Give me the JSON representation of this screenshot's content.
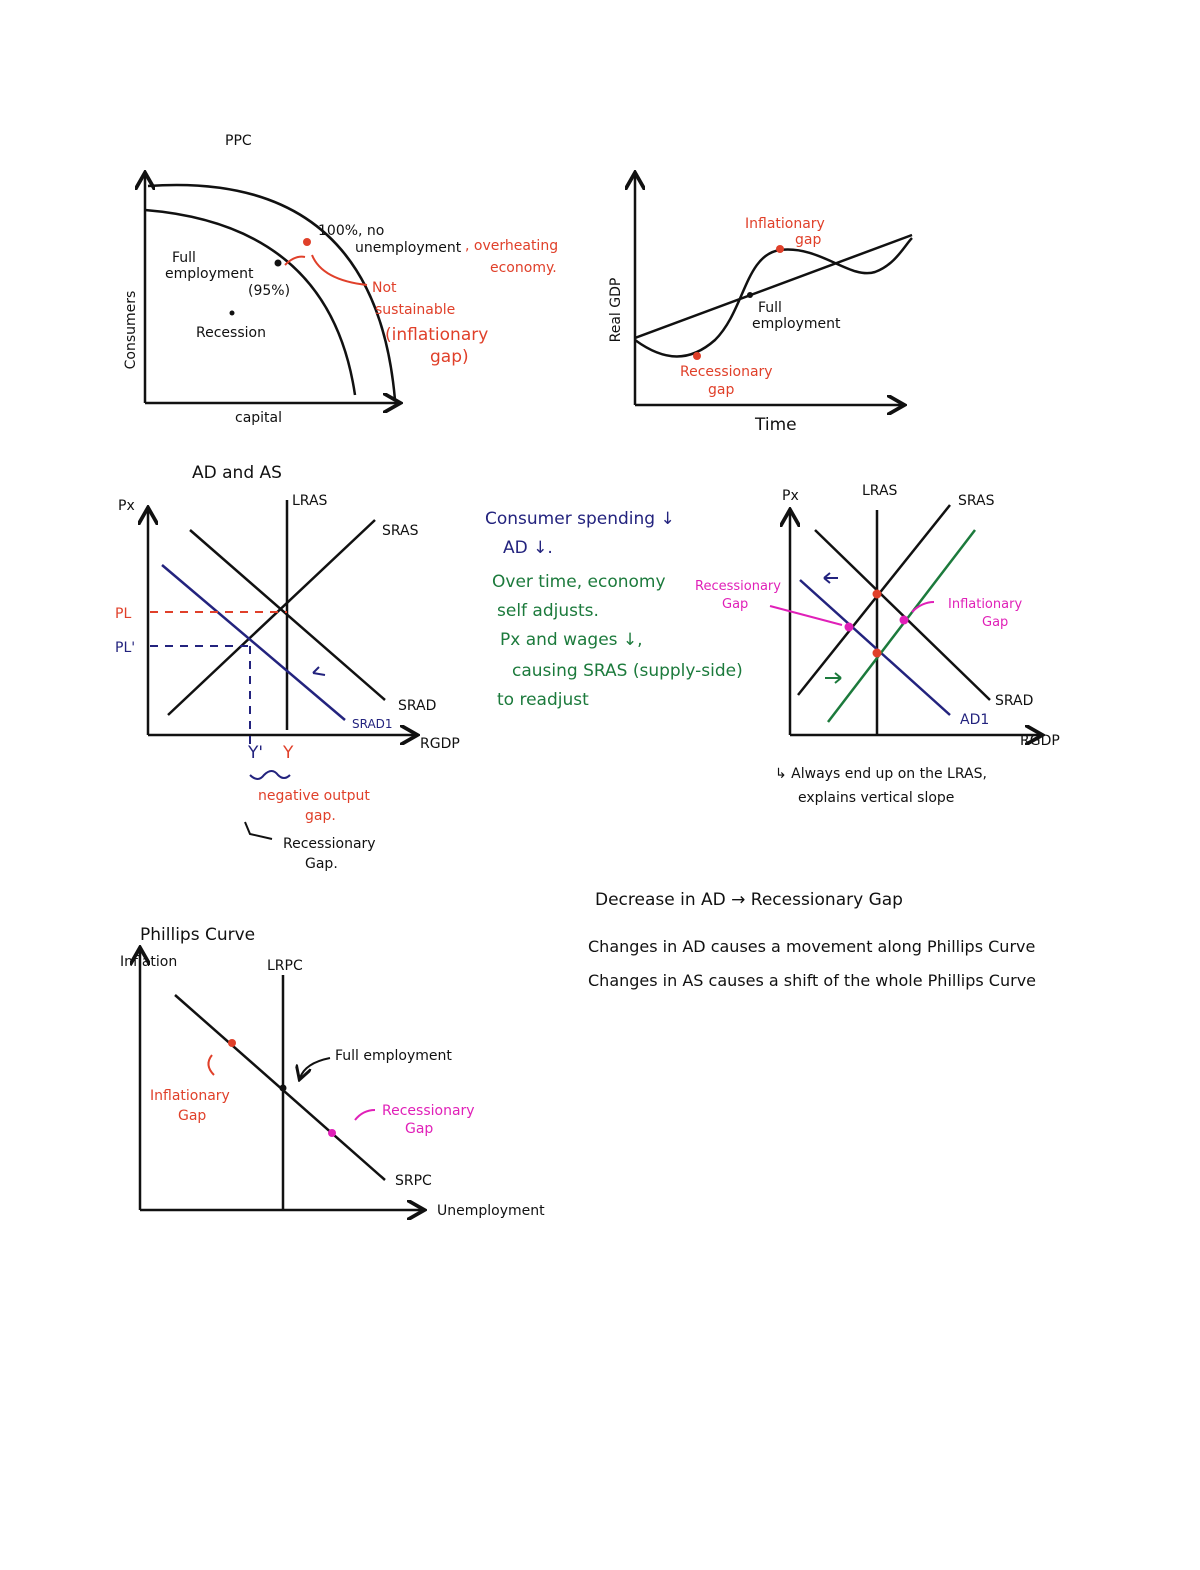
{
  "ppc": {
    "title": "PPC",
    "y_axis": "Consumers",
    "x_axis": "capital",
    "full_employment": [
      "Full",
      "employment",
      "(95%)"
    ],
    "recession": "Recession",
    "full_capacity": [
      "100%, no",
      "unemployment"
    ],
    "overheating": [
      ", overheating",
      "economy."
    ],
    "not_sustainable": [
      "Not",
      "sustainable",
      "(inflationary",
      "gap)"
    ]
  },
  "business_cycle": {
    "y_axis": "Real GDP",
    "x_axis": "Time",
    "inflationary_gap": [
      "Inflationary",
      "gap"
    ],
    "full_employment": [
      "Full",
      "employment"
    ],
    "recessionary_gap": [
      "Recessionary",
      "gap"
    ]
  },
  "ad_as": {
    "title": "AD and AS",
    "y_axis": "Px",
    "lras": "LRAS",
    "sras": "SRAS",
    "pl": "PL",
    "pl_prime": "PL'",
    "srad": "SRAD",
    "srad1": "SRAD1",
    "x_axis": "RGDP",
    "y_prime": "Y'",
    "y": "Y",
    "output_gap": [
      "negative output",
      "gap."
    ],
    "recessionary_gap": [
      "Recessionary",
      "Gap."
    ]
  },
  "notes": {
    "lines": [
      "Consumer spending ↓",
      "AD ↓.",
      "Over time, economy",
      "self adjusts.",
      "Px and wages ↓,",
      "causing SRAS (supply-side)",
      "to readjust"
    ]
  },
  "ad_as_2": {
    "y_axis": "Px",
    "lras": "LRAS",
    "sras": "SRAS",
    "recessionary_gap": [
      "Recessionary",
      "Gap"
    ],
    "inflationary_gap": [
      "Inflationary",
      "Gap"
    ],
    "srad": "SRAD",
    "ad1": "AD1",
    "x_axis": "RGDP",
    "note": [
      "↳ Always end up on the LRAS,",
      "explains vertical slope"
    ]
  },
  "summary": {
    "lines": [
      "Decrease in AD → Recessionary Gap",
      "Changes in AD causes a movement along Phillips Curve",
      "Changes in AS causes a shift of the whole Phillips Curve"
    ]
  },
  "phillips": {
    "title": "Phillips Curve",
    "y_axis": "Inflation",
    "lrpc": "LRPC",
    "full_employment": "Full employment",
    "inflationary_gap": [
      "Inflationary",
      "Gap"
    ],
    "recessionary_gap": [
      "Recessionary",
      "Gap"
    ],
    "srpc": "SRPC",
    "x_axis": "Unemployment"
  }
}
